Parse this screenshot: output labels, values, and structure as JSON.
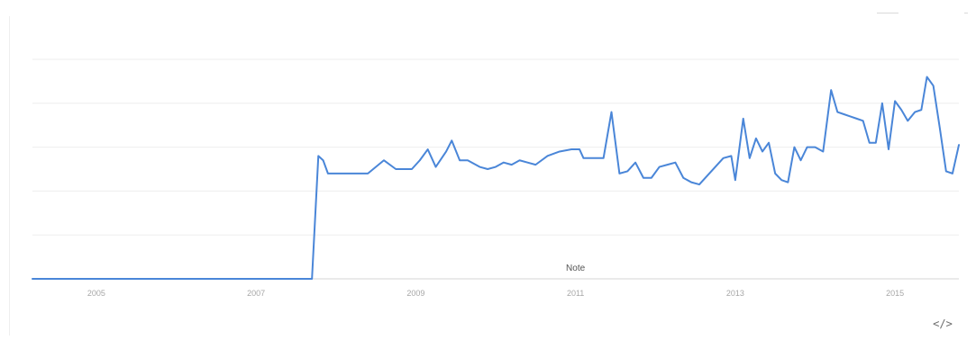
{
  "chart": {
    "note_label": "Note",
    "embed_label": "</>"
  },
  "colors": {
    "line": "#4a86d8",
    "grid": "#eeeeee",
    "axis_text": "#a7a7a7",
    "note_text": "#555555",
    "embed_icon": "#6c6c6c"
  },
  "icons": {
    "embed": "code-icon"
  },
  "chart_data": {
    "type": "line",
    "title": "",
    "xlabel": "",
    "ylabel": "",
    "x_ticks": [
      "2005",
      "2007",
      "2009",
      "2011",
      "2013",
      "2015"
    ],
    "xlim": [
      2004.2,
      2015.8
    ],
    "ylim": [
      0,
      100
    ],
    "grid": true,
    "legend": "none",
    "annotations": [
      {
        "label": "Note",
        "x": 2011.0
      }
    ],
    "series": [
      {
        "values": [
          [
            2004.2,
            0
          ],
          [
            2007.7,
            0
          ],
          [
            2007.78,
            56
          ],
          [
            2007.84,
            54
          ],
          [
            2007.9,
            48
          ],
          [
            2008.0,
            48
          ],
          [
            2008.2,
            48
          ],
          [
            2008.4,
            48
          ],
          [
            2008.6,
            54
          ],
          [
            2008.75,
            50
          ],
          [
            2008.95,
            50
          ],
          [
            2009.05,
            54
          ],
          [
            2009.15,
            59
          ],
          [
            2009.25,
            51
          ],
          [
            2009.38,
            58
          ],
          [
            2009.45,
            63
          ],
          [
            2009.55,
            54
          ],
          [
            2009.65,
            54
          ],
          [
            2009.8,
            51
          ],
          [
            2009.9,
            50
          ],
          [
            2010.0,
            51
          ],
          [
            2010.1,
            53
          ],
          [
            2010.2,
            52
          ],
          [
            2010.3,
            54
          ],
          [
            2010.4,
            53
          ],
          [
            2010.5,
            52
          ],
          [
            2010.65,
            56
          ],
          [
            2010.8,
            58
          ],
          [
            2010.95,
            59
          ],
          [
            2011.05,
            59
          ],
          [
            2011.1,
            55
          ],
          [
            2011.35,
            55
          ],
          [
            2011.45,
            76
          ],
          [
            2011.55,
            48
          ],
          [
            2011.65,
            49
          ],
          [
            2011.75,
            53
          ],
          [
            2011.85,
            46
          ],
          [
            2011.95,
            46
          ],
          [
            2012.05,
            51
          ],
          [
            2012.15,
            52
          ],
          [
            2012.25,
            53
          ],
          [
            2012.35,
            46
          ],
          [
            2012.45,
            44
          ],
          [
            2012.55,
            43
          ],
          [
            2012.65,
            47
          ],
          [
            2012.75,
            51
          ],
          [
            2012.85,
            55
          ],
          [
            2012.95,
            56
          ],
          [
            2013.0,
            45
          ],
          [
            2013.1,
            73
          ],
          [
            2013.18,
            55
          ],
          [
            2013.26,
            64
          ],
          [
            2013.34,
            58
          ],
          [
            2013.42,
            62
          ],
          [
            2013.5,
            48
          ],
          [
            2013.58,
            45
          ],
          [
            2013.66,
            44
          ],
          [
            2013.74,
            60
          ],
          [
            2013.82,
            54
          ],
          [
            2013.9,
            60
          ],
          [
            2014.0,
            60
          ],
          [
            2014.1,
            58
          ],
          [
            2014.2,
            86
          ],
          [
            2014.28,
            76
          ],
          [
            2014.36,
            75
          ],
          [
            2014.44,
            74
          ],
          [
            2014.52,
            73
          ],
          [
            2014.6,
            72
          ],
          [
            2014.68,
            62
          ],
          [
            2014.76,
            62
          ],
          [
            2014.84,
            80
          ],
          [
            2014.92,
            59
          ],
          [
            2015.0,
            81
          ],
          [
            2015.08,
            77
          ],
          [
            2015.16,
            72
          ],
          [
            2015.25,
            76
          ],
          [
            2015.33,
            77
          ],
          [
            2015.4,
            92
          ],
          [
            2015.48,
            88
          ],
          [
            2015.56,
            69
          ],
          [
            2015.64,
            49
          ],
          [
            2015.72,
            48
          ],
          [
            2015.8,
            61
          ]
        ]
      }
    ]
  }
}
